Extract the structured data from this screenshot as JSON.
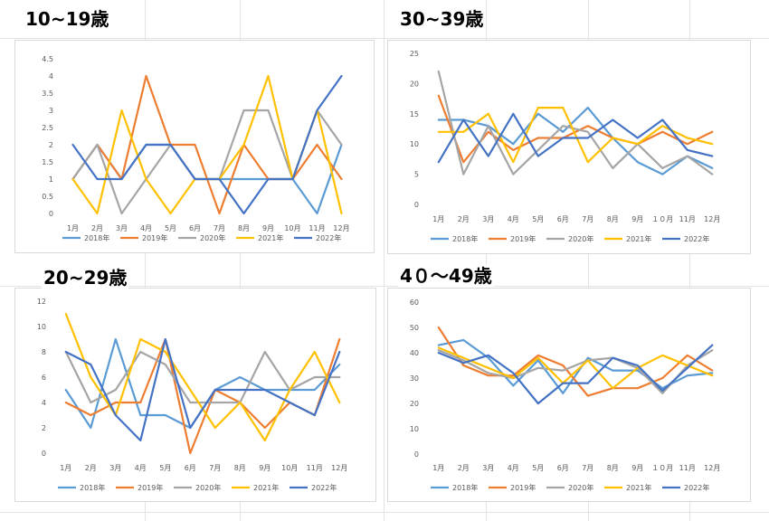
{
  "series_style": [
    {
      "name": "2018年",
      "color": "#5B9BD5"
    },
    {
      "name": "2019年",
      "color": "#ED7D31"
    },
    {
      "name": "2020年",
      "color": "#A5A5A5"
    },
    {
      "name": "2021年",
      "color": "#FFC000"
    },
    {
      "name": "2022年",
      "color": "#4472C4"
    }
  ],
  "chart_data": [
    {
      "type": "line",
      "title": "10~19歳",
      "categories": [
        "1月",
        "2月",
        "3月",
        "4月",
        "5月",
        "6月",
        "7月",
        "8月",
        "9月",
        "10月",
        "11月",
        "12月"
      ],
      "ylim": [
        0,
        4.5
      ],
      "yticks": [
        "0",
        "0.5",
        "1",
        "1.5",
        "2",
        "2.5",
        "3",
        "3.5",
        "4",
        "4.5"
      ],
      "legend": "bottom",
      "series": [
        {
          "name": "2018年",
          "values": [
            1,
            2,
            1,
            2,
            2,
            1,
            1,
            1,
            1,
            1,
            0,
            2
          ]
        },
        {
          "name": "2019年",
          "values": [
            1,
            2,
            1,
            4,
            2,
            2,
            0,
            2,
            1,
            1,
            2,
            1
          ]
        },
        {
          "name": "2020年",
          "values": [
            1,
            2,
            0,
            1,
            2,
            1,
            1,
            3,
            3,
            1,
            3,
            2
          ]
        },
        {
          "name": "2021年",
          "values": [
            1,
            0,
            3,
            1,
            0,
            1,
            1,
            2,
            4,
            1,
            3,
            0
          ]
        },
        {
          "name": "2022年",
          "values": [
            2,
            1,
            1,
            2,
            2,
            1,
            1,
            0,
            1,
            1,
            3,
            4
          ]
        }
      ]
    },
    {
      "type": "line",
      "title": "30~39歳",
      "categories": [
        "1月",
        "2月",
        "3月",
        "4月",
        "5月",
        "6月",
        "7月",
        "8月",
        "9月",
        "１０月",
        "11月",
        "12月"
      ],
      "ylim": [
        0,
        25
      ],
      "yticks": [
        "0",
        "5",
        "10",
        "15",
        "20",
        "25"
      ],
      "legend": "bottom",
      "series": [
        {
          "name": "2018年",
          "values": [
            14,
            14,
            13,
            10,
            15,
            12,
            16,
            11,
            7,
            5,
            8,
            6
          ]
        },
        {
          "name": "2019年",
          "values": [
            18,
            7,
            12,
            9,
            11,
            11,
            13,
            11,
            10,
            12,
            10,
            12
          ]
        },
        {
          "name": "2020年",
          "values": [
            22,
            5,
            13,
            5,
            9,
            13,
            12,
            6,
            10,
            6,
            8,
            5
          ]
        },
        {
          "name": "2021年",
          "values": [
            12,
            12,
            15,
            7,
            16,
            16,
            7,
            11,
            10,
            13,
            11,
            10
          ]
        },
        {
          "name": "2022年",
          "values": [
            7,
            14,
            8,
            15,
            8,
            11,
            11,
            14,
            11,
            14,
            9,
            8
          ]
        }
      ]
    },
    {
      "type": "line",
      "title": "20~29歳",
      "categories": [
        "1月",
        "2月",
        "3月",
        "4月",
        "5月",
        "6月",
        "7月",
        "8月",
        "9月",
        "10月",
        "11月",
        "12月"
      ],
      "ylim": [
        0,
        12
      ],
      "yticks": [
        "0",
        "2",
        "4",
        "6",
        "8",
        "10",
        "12"
      ],
      "legend": "bottom",
      "series": [
        {
          "name": "2018年",
          "values": [
            5,
            2,
            9,
            3,
            3,
            2,
            5,
            6,
            5,
            5,
            5,
            7
          ]
        },
        {
          "name": "2019年",
          "values": [
            4,
            3,
            4,
            4,
            9,
            0,
            5,
            4,
            2,
            4,
            3,
            9
          ]
        },
        {
          "name": "2020年",
          "values": [
            8,
            4,
            5,
            8,
            7,
            4,
            4,
            4,
            8,
            5,
            6,
            6
          ]
        },
        {
          "name": "2021年",
          "values": [
            11,
            6,
            3,
            9,
            8,
            5,
            2,
            4,
            1,
            5,
            8,
            4
          ]
        },
        {
          "name": "2022年",
          "values": [
            8,
            7,
            3,
            1,
            9,
            2,
            5,
            5,
            5,
            4,
            3,
            8
          ]
        }
      ]
    },
    {
      "type": "line",
      "title": "4０～49歳",
      "categories": [
        "1月",
        "2月",
        "3月",
        "4月",
        "5月",
        "6月",
        "7月",
        "8月",
        "9月",
        "１０月",
        "11月",
        "12月"
      ],
      "ylim": [
        0,
        60
      ],
      "yticks": [
        "0",
        "10",
        "20",
        "30",
        "40",
        "50",
        "60"
      ],
      "legend": "bottom",
      "series": [
        {
          "name": "2018年",
          "values": [
            43,
            45,
            38,
            27,
            37,
            24,
            38,
            33,
            33,
            26,
            31,
            32
          ]
        },
        {
          "name": "2019年",
          "values": [
            50,
            35,
            31,
            31,
            39,
            35,
            23,
            26,
            26,
            30,
            39,
            33
          ]
        },
        {
          "name": "2020年",
          "values": [
            41,
            37,
            32,
            30,
            34,
            33,
            37,
            38,
            34,
            24,
            35,
            41
          ]
        },
        {
          "name": "2021年",
          "values": [
            42,
            38,
            34,
            30,
            38,
            28,
            37,
            26,
            34,
            39,
            35,
            31
          ]
        },
        {
          "name": "2022年",
          "values": [
            40,
            36,
            39,
            32,
            20,
            28,
            28,
            38,
            35,
            25,
            34,
            43
          ]
        }
      ]
    }
  ]
}
